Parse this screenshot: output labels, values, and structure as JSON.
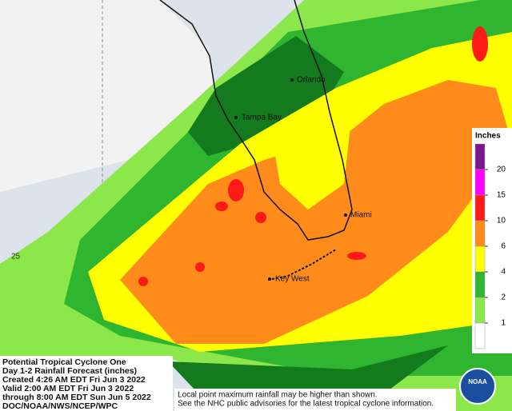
{
  "map": {
    "cities": [
      {
        "label": "Orlando"
      },
      {
        "label": "Tampa Bay"
      },
      {
        "label": "Miami"
      },
      {
        "label": "Key West"
      }
    ],
    "latitude_label": "25",
    "legend": {
      "title": "Inches",
      "colors": [
        "#7a1a8c",
        "#ff00ff",
        "#ff1a1a",
        "#ff8c1a",
        "#ffff00",
        "#2fb52f",
        "#8ce84a",
        "#ffffff"
      ],
      "ticks": [
        20,
        15,
        10,
        6,
        4,
        2,
        1
      ]
    },
    "info": [
      "Potential Tropical Cyclone One",
      "Day 1-2 Rainfall Forecast (inches)",
      "Created 4:26 AM EDT Fri Jun 3 2022",
      "Valid 2:00 AM EDT Fri Jun 3 2022",
      "through 8:00 AM EDT Sun Jun 5 2022",
      "DOC/NOAA/NWS/NCEP/WPC"
    ],
    "disclaimer": [
      "Local point maximum rainfall may be higher than shown.",
      "See the NHC public advisories for the latest tropical cyclone information."
    ],
    "logo_text": "NOAA"
  }
}
